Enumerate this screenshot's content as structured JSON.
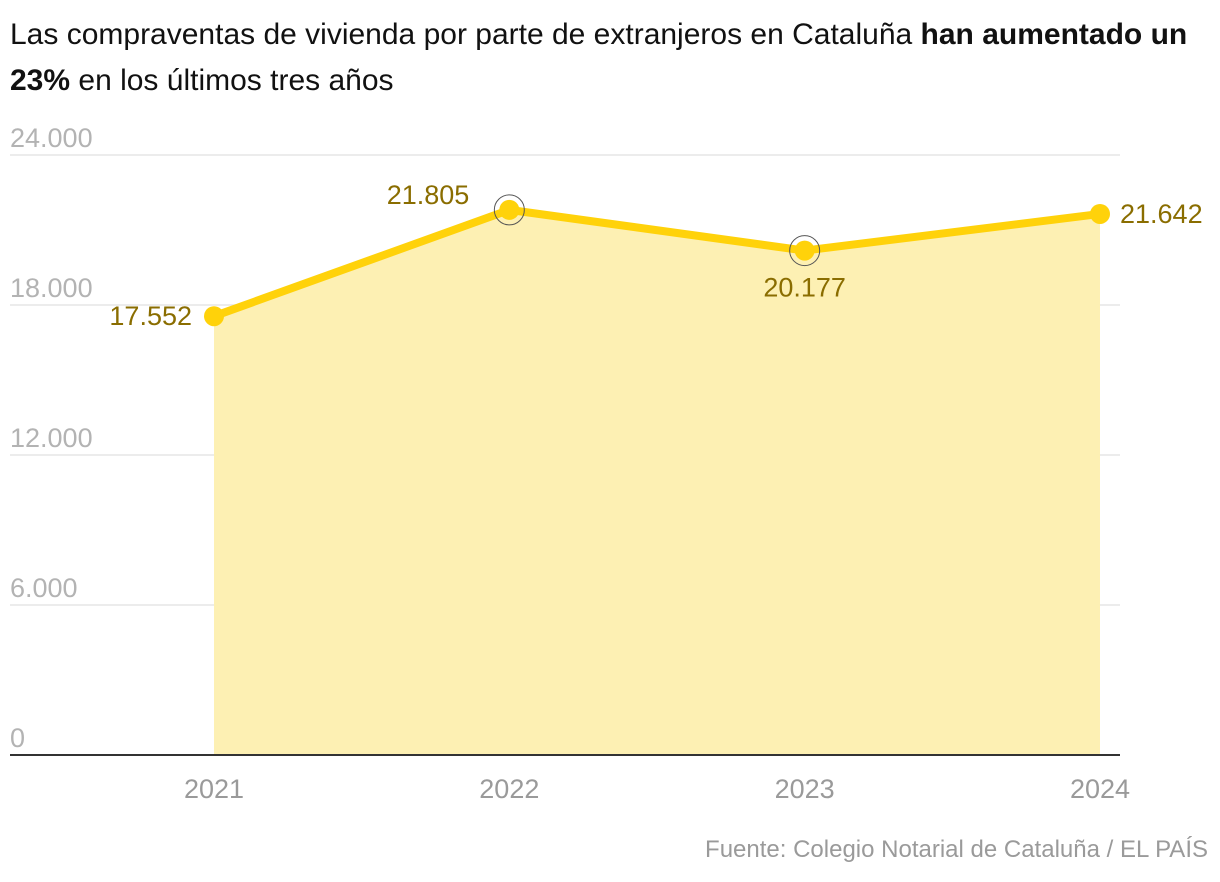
{
  "title": {
    "part1": "Las compraventas de vivienda por parte de extranjeros en Cataluña ",
    "bold": "han aumentado un 23%",
    "part2": " en los últimos tres años"
  },
  "source": "Fuente: Colegio Notarial de Cataluña / EL PAÍS",
  "colors": {
    "line": "#ffd20a",
    "area": "#fdf0b3",
    "label": "#8a6d00",
    "grid": "#e6e6e6",
    "axis": "#333333"
  },
  "chart_data": {
    "type": "area",
    "title": "Las compraventas de vivienda por parte de extranjeros en Cataluña han aumentado un 23% en los últimos tres años",
    "x": [
      "2021",
      "2022",
      "2023",
      "2024"
    ],
    "series": [
      {
        "values": [
          17552,
          21805,
          20177,
          21642
        ]
      }
    ],
    "data_labels": [
      "17.552",
      "21.805",
      "20.177",
      "21.642"
    ],
    "highlighted_points": [
      "2022",
      "2023"
    ],
    "yticks": [
      0,
      6000,
      12000,
      18000,
      24000
    ],
    "ytick_labels": [
      "0",
      "6.000",
      "12.000",
      "18.000",
      "24.000"
    ],
    "ylim": [
      0,
      24000
    ],
    "grid": true,
    "legend": "none"
  }
}
